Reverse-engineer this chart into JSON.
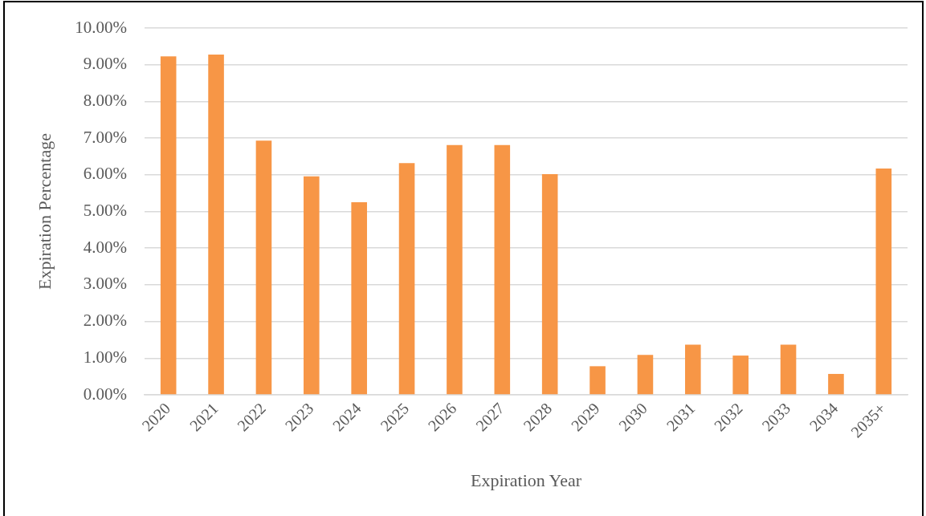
{
  "chart_data": {
    "type": "bar",
    "xlabel": "Expiration Year",
    "ylabel": "Expiration Percentage",
    "categories": [
      "2020",
      "2021",
      "2022",
      "2023",
      "2024",
      "2025",
      "2026",
      "2027",
      "2028",
      "2029",
      "2030",
      "2031",
      "2032",
      "2033",
      "2034",
      "2035+"
    ],
    "values": [
      9.23,
      9.28,
      6.93,
      5.96,
      5.25,
      6.32,
      6.81,
      6.81,
      6.02,
      0.78,
      1.09,
      1.37,
      1.07,
      1.37,
      0.57,
      6.17
    ],
    "color": "#f79646",
    "ylim": [
      0,
      10
    ],
    "yticks": [
      {
        "value": 0,
        "label": "0.00%"
      },
      {
        "value": 1,
        "label": "1.00%"
      },
      {
        "value": 2,
        "label": "2.00%"
      },
      {
        "value": 3,
        "label": "3.00%"
      },
      {
        "value": 4,
        "label": "4.00%"
      },
      {
        "value": 5,
        "label": "5.00%"
      },
      {
        "value": 6,
        "label": "6.00%"
      },
      {
        "value": 7,
        "label": "7.00%"
      },
      {
        "value": 8,
        "label": "8.00%"
      },
      {
        "value": 9,
        "label": "9.00%"
      },
      {
        "value": 10,
        "label": "10.00%"
      }
    ],
    "grid": "y"
  }
}
